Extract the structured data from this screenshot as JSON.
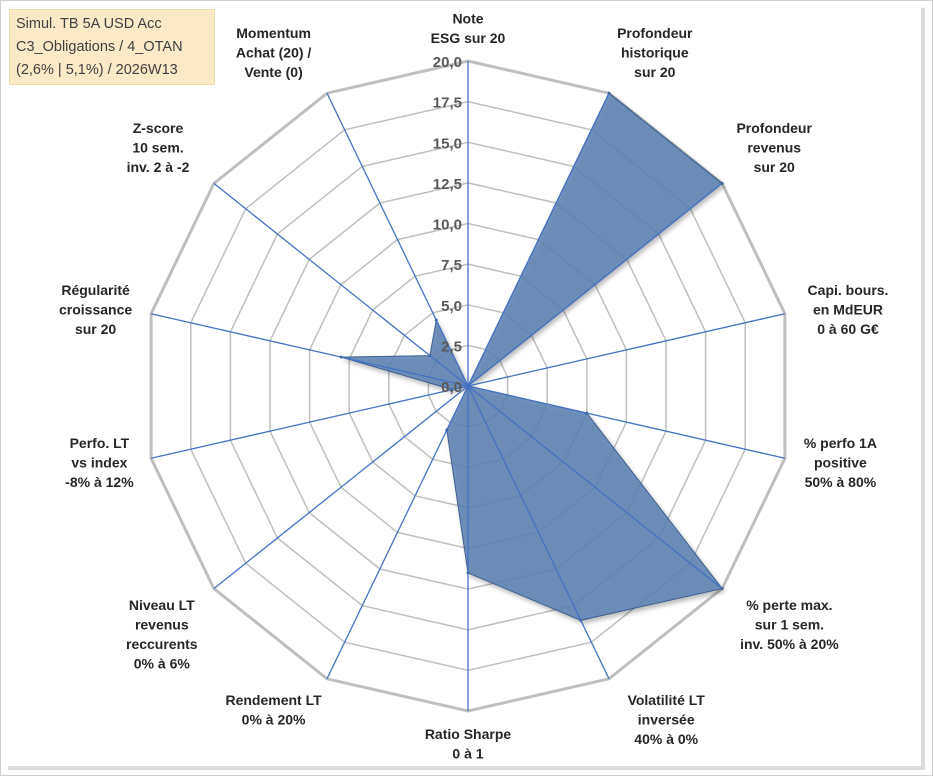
{
  "title": {
    "lines": [
      "Simul. TB 5A USD Acc",
      "C3_Obligations / 4_OTAN",
      "(2,6% | 5,1%) / 2026W13"
    ]
  },
  "chart_data": {
    "type": "radar",
    "rmin": 0,
    "rmax": 20,
    "tick_step": 2.5,
    "tick_labels": [
      "0,0",
      "2,5",
      "5,0",
      "7,5",
      "10,0",
      "12,5",
      "15,0",
      "17,5",
      "20,0"
    ],
    "grid": true,
    "colors": {
      "fill": "#5b80b2",
      "stroke": "#3d5f91",
      "grid": "#bfbfbf",
      "spoke": "#4472c4"
    },
    "axes": [
      {
        "label": [
          "Note",
          "ESG sur 20"
        ],
        "value": 0.0
      },
      {
        "label": [
          "Profondeur",
          "historique",
          "sur 20"
        ],
        "value": 20.0
      },
      {
        "label": [
          "Profondeur",
          "revenus",
          "sur 20"
        ],
        "value": 20.0
      },
      {
        "label": [
          "Capi. bours.",
          "en MdEUR",
          "0 à 60 G€"
        ],
        "value": 0.0
      },
      {
        "label": [
          "% perfo 1A",
          "positive",
          "50% à 80%"
        ],
        "value": 7.5
      },
      {
        "label": [
          "% perte max.",
          "sur 1 sem.",
          "inv. 50% à 20%"
        ],
        "value": 20.0
      },
      {
        "label": [
          "Volatilité LT",
          "inversée",
          "40% à 0%"
        ],
        "value": 16.0
      },
      {
        "label": [
          "Ratio Sharpe",
          "0 à 1"
        ],
        "value": 11.5
      },
      {
        "label": [
          "Rendement LT",
          "0% à 20%"
        ],
        "value": 3.0
      },
      {
        "label": [
          "Niveau LT",
          "revenus",
          "reccurents",
          "0% à 6%"
        ],
        "value": 0.0
      },
      {
        "label": [
          "Perfo. LT",
          "vs index",
          "-8% à 12%"
        ],
        "value": 1.0
      },
      {
        "label": [
          "Régularité",
          "croissance",
          "sur 20"
        ],
        "value": 8.0
      },
      {
        "label": [
          "Z-score",
          "10 sem.",
          "inv. 2 à -2"
        ],
        "value": 3.0
      },
      {
        "label": [
          "Momentum",
          "Achat (20) /",
          "Vente (0)"
        ],
        "value": 4.5
      }
    ]
  }
}
